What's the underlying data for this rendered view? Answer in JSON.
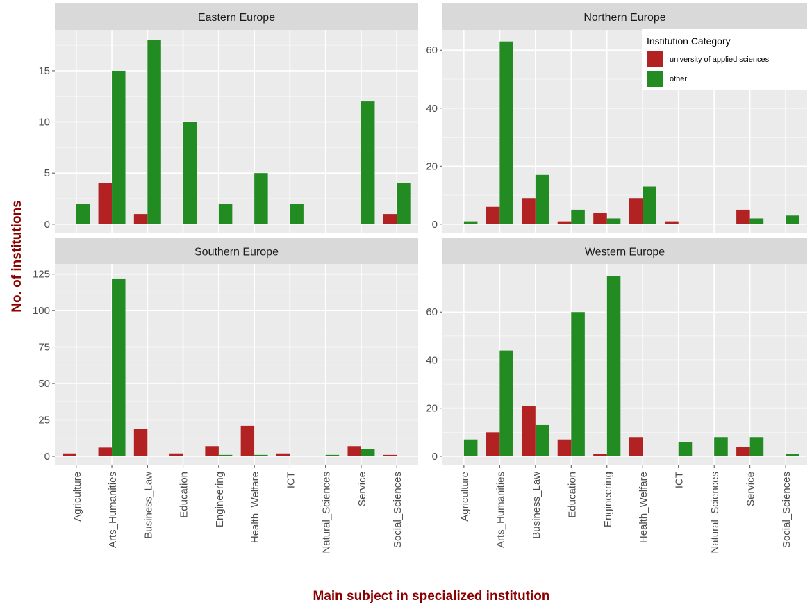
{
  "chart_data": {
    "type": "bar",
    "title": "",
    "xlabel": "Main subject in specialized institution",
    "ylabel": "No. of institutions",
    "categories": [
      "Agriculture",
      "Arts_Humanities",
      "Business_Law",
      "Education",
      "Engineering",
      "Health_Welfare",
      "ICT",
      "Natural_Sciences",
      "Service",
      "Social_Sciences"
    ],
    "legend": {
      "title": "Institution Category",
      "placement": "top-right",
      "entries": [
        {
          "name": "university of applied sciences",
          "color": "#B22222"
        },
        {
          "name": "other",
          "color": "#228B22"
        }
      ]
    },
    "panels": [
      {
        "name": "Eastern Europe",
        "ylim": [
          0,
          19
        ],
        "yticks": [
          0,
          5,
          10,
          15
        ],
        "series": [
          {
            "name": "university of applied sciences",
            "values": [
              0,
              4,
              1,
              0,
              0,
              0,
              0,
              0,
              0,
              1
            ]
          },
          {
            "name": "other",
            "values": [
              2,
              15,
              18,
              10,
              2,
              5,
              2,
              0,
              12,
              4
            ]
          }
        ]
      },
      {
        "name": "Northern Europe",
        "ylim": [
          0,
          67
        ],
        "yticks": [
          0,
          20,
          40,
          60
        ],
        "series": [
          {
            "name": "university of applied sciences",
            "values": [
              0,
              6,
              9,
              1,
              4,
              9,
              1,
              0,
              5,
              0
            ]
          },
          {
            "name": "other",
            "values": [
              1,
              63,
              17,
              5,
              2,
              13,
              0,
              0,
              2,
              3
            ]
          }
        ]
      },
      {
        "name": "Southern Europe",
        "ylim": [
          0,
          132
        ],
        "yticks": [
          0,
          25,
          50,
          75,
          100,
          125
        ],
        "series": [
          {
            "name": "university of applied sciences",
            "values": [
              2,
              6,
              19,
              2,
              7,
              21,
              2,
              0,
              7,
              1
            ]
          },
          {
            "name": "other",
            "values": [
              0,
              122,
              0,
              0,
              1,
              1,
              0,
              1,
              5,
              0
            ]
          }
        ]
      },
      {
        "name": "Western Europe",
        "ylim": [
          0,
          80
        ],
        "yticks": [
          0,
          20,
          40,
          60
        ],
        "series": [
          {
            "name": "university of applied sciences",
            "values": [
              0,
              10,
              21,
              7,
              1,
              8,
              0,
              0,
              4,
              0
            ]
          },
          {
            "name": "other",
            "values": [
              7,
              44,
              13,
              60,
              75,
              0,
              6,
              8,
              8,
              1
            ]
          }
        ]
      }
    ],
    "grid": true
  }
}
